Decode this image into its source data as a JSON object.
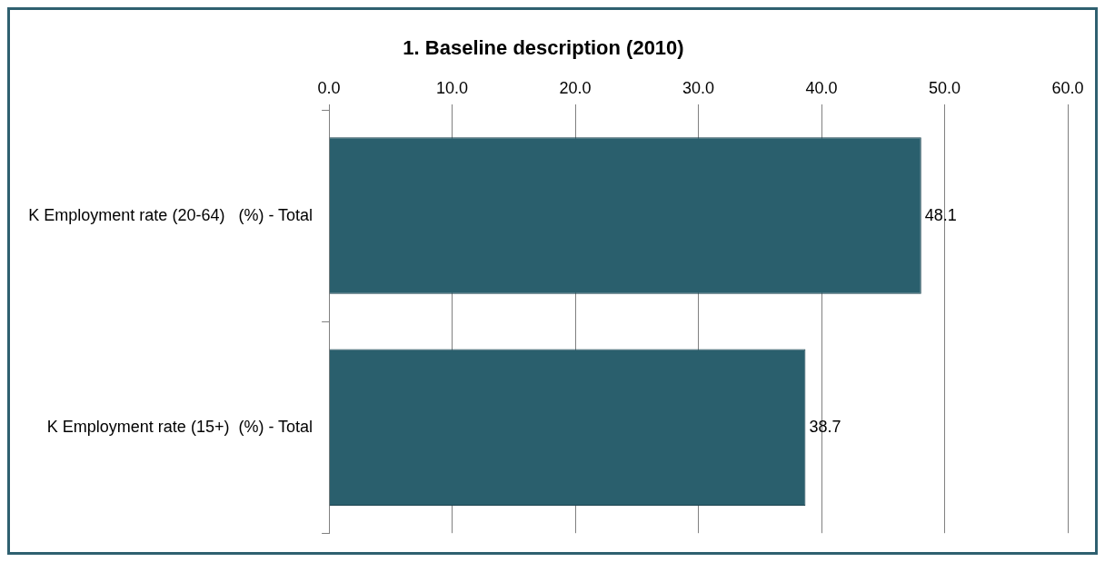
{
  "chart_data": {
    "type": "bar",
    "orientation": "horizontal",
    "title": "1. Baseline description (2010)",
    "categories": [
      "K Employment rate (20-64)   (%) - Total",
      "K Employment rate (15+)  (%) - Total"
    ],
    "values": [
      48.1,
      38.7
    ],
    "color": "#2a5f6d",
    "xlim": [
      0,
      60
    ],
    "xticks": [
      {
        "value": 0,
        "label": "0.0"
      },
      {
        "value": 10,
        "label": "10.0"
      },
      {
        "value": 20,
        "label": "20.0"
      },
      {
        "value": 30,
        "label": "30.0"
      },
      {
        "value": 40,
        "label": "40.0"
      },
      {
        "value": 50,
        "label": "50.0"
      },
      {
        "value": 60,
        "label": "60.0"
      }
    ],
    "grid": "x",
    "legend": false,
    "data_labels": true
  }
}
